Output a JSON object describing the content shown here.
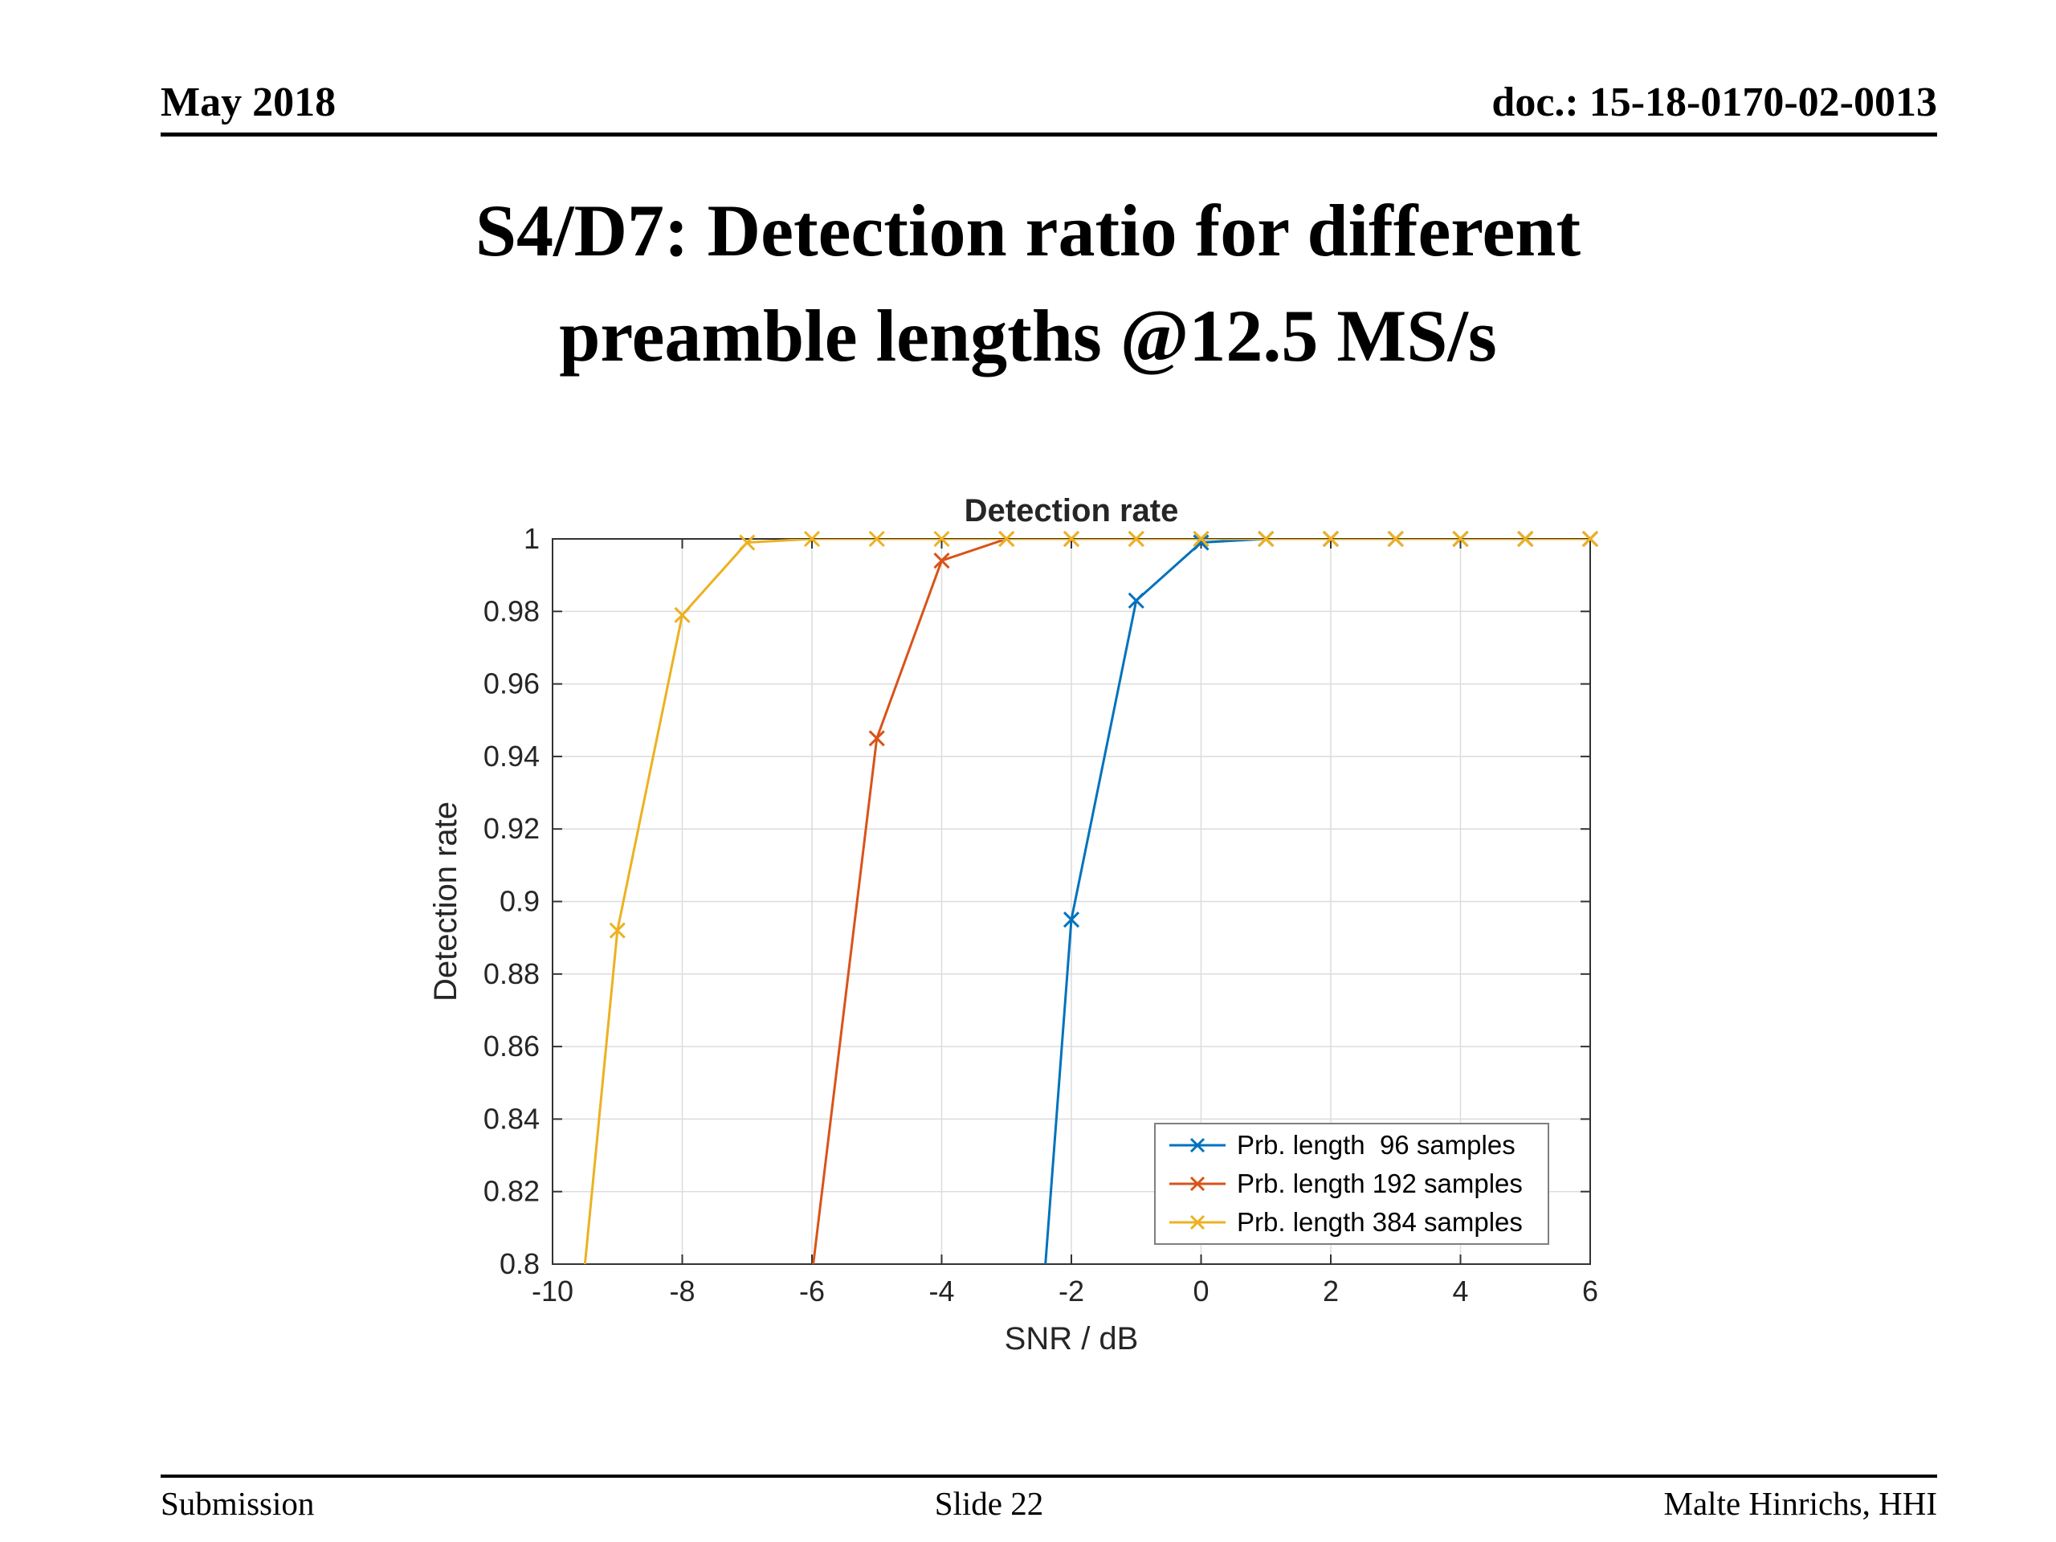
{
  "header": {
    "date": "May 2018",
    "doc": "doc.: 15-18-0170-02-0013"
  },
  "title": {
    "lines": [
      "S4/D7: Detection ratio for different",
      "preamble lengths @12.5 MS/s"
    ]
  },
  "footer": {
    "left": "Submission",
    "center": "Slide 22",
    "right": "Malte Hinrichs, HHI"
  },
  "chart_data": {
    "type": "line",
    "title": "Detection rate",
    "xlabel": "SNR / dB",
    "ylabel": "Detection rate",
    "xlim": [
      -10,
      6
    ],
    "ylim": [
      0.8,
      1.0
    ],
    "xticks": [
      -10,
      -8,
      -6,
      -4,
      -2,
      0,
      2,
      4,
      6
    ],
    "yticks": [
      0.8,
      0.82,
      0.84,
      0.86,
      0.88,
      0.9,
      0.92,
      0.94,
      0.96,
      0.98,
      1
    ],
    "grid": true,
    "marker": "x",
    "legend_position": "lower right",
    "series": [
      {
        "name": "Prb. length  96 samples",
        "color": "#0072BD",
        "x": [
          -2.4,
          -2,
          -1,
          0,
          1,
          2,
          3,
          4,
          5,
          6
        ],
        "y": [
          0.8,
          0.895,
          0.983,
          0.999,
          1,
          1,
          1,
          1,
          1,
          1
        ]
      },
      {
        "name": "Prb. length 192 samples",
        "color": "#D95319",
        "x": [
          -5.98,
          -5,
          -4,
          -3,
          -2,
          -1,
          0,
          1,
          2,
          3,
          4,
          5,
          6
        ],
        "y": [
          0.8,
          0.945,
          0.994,
          1,
          1,
          1,
          1,
          1,
          1,
          1,
          1,
          1,
          1
        ]
      },
      {
        "name": "Prb. length 384 samples",
        "color": "#EDB120",
        "x": [
          -9.5,
          -9,
          -8,
          -7,
          -6,
          -5,
          -4,
          -3,
          -2,
          -1,
          0,
          1,
          2,
          3,
          4,
          5,
          6
        ],
        "y": [
          0.8,
          0.892,
          0.979,
          0.999,
          1,
          1,
          1,
          1,
          1,
          1,
          1,
          1,
          1,
          1,
          1,
          1,
          1
        ]
      }
    ]
  }
}
